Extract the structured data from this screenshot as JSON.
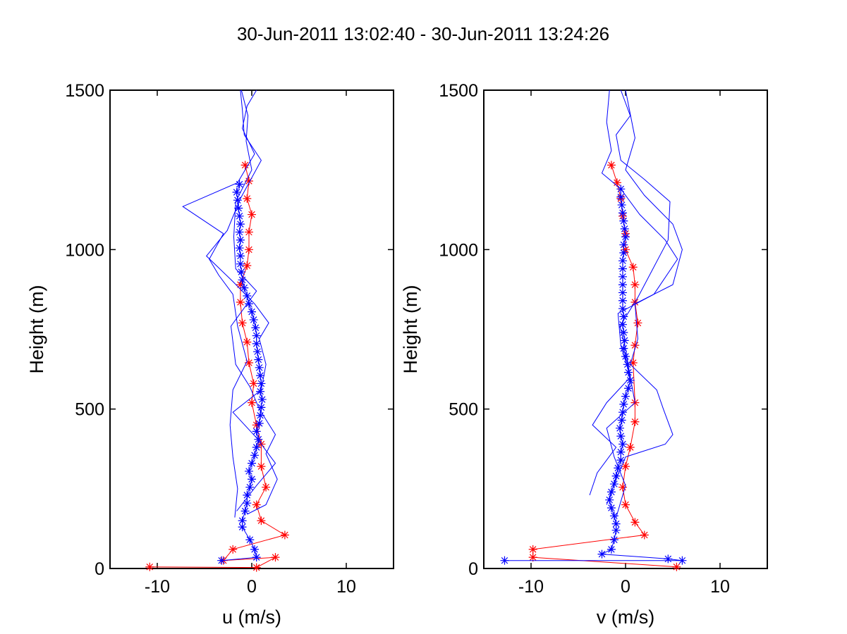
{
  "title": "30-Jun-2011 13:02:40 - 30-Jun-2011 13:24:26",
  "colors": {
    "red": "#ff0000",
    "blue": "#0000ff",
    "axes": "#000000",
    "background": "#ffffff"
  },
  "chart_data": [
    {
      "type": "line",
      "panel": "u",
      "xlabel": "u (m/s)",
      "ylabel": "Height (m)",
      "xlim": [
        -15,
        15
      ],
      "ylim": [
        0,
        1500
      ],
      "xticks": [
        -10,
        0,
        10
      ],
      "yticks": [
        0,
        500,
        1000,
        1500
      ],
      "grid": false,
      "series": [
        {
          "color": "red",
          "marker": "*",
          "points": [
            [
              -10.8,
              5
            ],
            [
              0.5,
              3
            ],
            [
              2.5,
              35
            ],
            [
              -3,
              25
            ],
            [
              -2,
              60
            ],
            [
              3.5,
              105
            ],
            [
              1,
              150
            ],
            [
              0.5,
              200
            ],
            [
              1.5,
              255
            ],
            [
              1,
              320
            ],
            [
              1,
              390
            ],
            [
              0.5,
              450
            ],
            [
              0,
              520
            ],
            [
              0.2,
              580
            ],
            [
              -0.3,
              645
            ],
            [
              -0.5,
              710
            ],
            [
              -1,
              770
            ],
            [
              -1.2,
              835
            ],
            [
              -1.2,
              890
            ],
            [
              -0.5,
              950
            ],
            [
              -0.3,
              1000
            ],
            [
              -0.3,
              1055
            ],
            [
              0,
              1110
            ],
            [
              -0.5,
              1160
            ],
            [
              -0.3,
              1215
            ],
            [
              -0.7,
              1265
            ]
          ]
        },
        {
          "color": "blue",
          "marker": "*",
          "points": [
            [
              -3.2,
              25
            ],
            [
              0.5,
              35
            ],
            [
              0.3,
              60
            ],
            [
              -0.2,
              90
            ],
            [
              -1,
              130
            ],
            [
              -1,
              150
            ],
            [
              -0.7,
              180
            ],
            [
              -0.5,
              205
            ],
            [
              -0.5,
              230
            ],
            [
              -0.2,
              255
            ],
            [
              0,
              280
            ],
            [
              -0.3,
              305
            ],
            [
              0,
              330
            ],
            [
              0.3,
              355
            ],
            [
              0.5,
              380
            ],
            [
              0.7,
              405
            ],
            [
              0.5,
              430
            ],
            [
              0.8,
              455
            ],
            [
              0.9,
              480
            ],
            [
              1,
              505
            ],
            [
              1.1,
              530
            ],
            [
              0.9,
              555
            ],
            [
              1,
              580
            ],
            [
              0.9,
              605
            ],
            [
              0.8,
              630
            ],
            [
              0.7,
              655
            ],
            [
              0.6,
              680
            ],
            [
              0.5,
              705
            ],
            [
              0.5,
              730
            ],
            [
              0.4,
              755
            ],
            [
              0.2,
              780
            ],
            [
              0,
              805
            ],
            [
              -0.3,
              830
            ],
            [
              -0.5,
              855
            ],
            [
              -0.8,
              880
            ],
            [
              -1,
              905
            ],
            [
              -1.1,
              930
            ],
            [
              -1.2,
              955
            ],
            [
              -1.2,
              980
            ],
            [
              -1.3,
              1005
            ],
            [
              -1.2,
              1030
            ],
            [
              -1.3,
              1055
            ],
            [
              -1.2,
              1080
            ],
            [
              -1.3,
              1105
            ],
            [
              -1.4,
              1130
            ],
            [
              -1.5,
              1155
            ],
            [
              -1.6,
              1180
            ],
            [
              -1.3,
              1205
            ]
          ]
        },
        {
          "color": "blue",
          "marker": "none",
          "points": [
            [
              -1.8,
              160
            ],
            [
              -1.5,
              250
            ],
            [
              -2,
              350
            ],
            [
              -2.3,
              450
            ],
            [
              -2,
              560
            ],
            [
              -0.5,
              650
            ],
            [
              -1.5,
              760
            ],
            [
              -2,
              860
            ],
            [
              -3.5,
              920
            ],
            [
              -4.5,
              970
            ],
            [
              -3,
              1050
            ],
            [
              -7.3,
              1135
            ],
            [
              -1.5,
              1210
            ],
            [
              0.3,
              1300
            ],
            [
              -1,
              1380
            ],
            [
              -0.5,
              1450
            ],
            [
              0.5,
              1500
            ]
          ]
        },
        {
          "color": "blue",
          "marker": "none",
          "points": [
            [
              -1.6,
              180
            ],
            [
              0.5,
              260
            ],
            [
              2.5,
              330
            ],
            [
              0.5,
              410
            ],
            [
              -2,
              490
            ],
            [
              1,
              560
            ],
            [
              1.5,
              640
            ],
            [
              0.8,
              720
            ],
            [
              1.8,
              770
            ],
            [
              0.3,
              830
            ],
            [
              -2,
              900
            ],
            [
              -4.8,
              980
            ],
            [
              -2.6,
              1060
            ],
            [
              -1.2,
              1160
            ],
            [
              1,
              1280
            ],
            [
              -0.8,
              1360
            ],
            [
              -1,
              1440
            ],
            [
              -1.2,
              1500
            ]
          ]
        },
        {
          "color": "blue",
          "marker": "none",
          "points": [
            [
              -0.5,
              170
            ],
            [
              1.5,
              200
            ],
            [
              2.7,
              280
            ],
            [
              1.5,
              360
            ],
            [
              2.5,
              420
            ],
            [
              0.8,
              500
            ],
            [
              -0.2,
              570
            ],
            [
              -1.7,
              640
            ],
            [
              -2.2,
              760
            ],
            [
              0.5,
              870
            ],
            [
              -1.7,
              940
            ],
            [
              -1.9,
              1040
            ],
            [
              -1.7,
              1150
            ],
            [
              0,
              1250
            ],
            [
              -0.6,
              1340
            ],
            [
              -0.4,
              1420
            ],
            [
              -1.1,
              1500
            ]
          ]
        }
      ]
    },
    {
      "type": "line",
      "panel": "v",
      "xlabel": "v (m/s)",
      "ylabel": "Height (m)",
      "xlim": [
        -15,
        15
      ],
      "ylim": [
        0,
        1500
      ],
      "xticks": [
        -10,
        0,
        10
      ],
      "yticks": [
        0,
        500,
        1000,
        1500
      ],
      "grid": false,
      "series": [
        {
          "color": "red",
          "marker": "*",
          "points": [
            [
              5.4,
              5
            ],
            [
              -9.8,
              35
            ],
            [
              -9.8,
              60
            ],
            [
              2,
              105
            ],
            [
              1,
              145
            ],
            [
              0,
              200
            ],
            [
              -0.3,
              255
            ],
            [
              0,
              320
            ],
            [
              0.5,
              380
            ],
            [
              1,
              460
            ],
            [
              1,
              520
            ],
            [
              0.8,
              645
            ],
            [
              1,
              700
            ],
            [
              1.3,
              770
            ],
            [
              1,
              835
            ],
            [
              1,
              890
            ],
            [
              0.8,
              945
            ],
            [
              0,
              1000
            ],
            [
              0,
              1050
            ],
            [
              -0.3,
              1105
            ],
            [
              -0.5,
              1160
            ],
            [
              -0.9,
              1210
            ],
            [
              -1.5,
              1265
            ]
          ]
        },
        {
          "color": "blue",
          "marker": "*",
          "points": [
            [
              -12.8,
              25
            ],
            [
              6,
              25
            ],
            [
              4.5,
              30
            ],
            [
              -2.5,
              45
            ],
            [
              -1.5,
              60
            ],
            [
              -1.2,
              90
            ],
            [
              -1,
              120
            ],
            [
              -1,
              140
            ],
            [
              -1.2,
              165
            ],
            [
              -1.5,
              190
            ],
            [
              -1.7,
              215
            ],
            [
              -1.5,
              240
            ],
            [
              -1.2,
              265
            ],
            [
              -1,
              290
            ],
            [
              -0.8,
              315
            ],
            [
              -0.5,
              340
            ],
            [
              -0.5,
              365
            ],
            [
              -0.3,
              390
            ],
            [
              -0.5,
              415
            ],
            [
              -0.6,
              440
            ],
            [
              -0.4,
              465
            ],
            [
              -0.3,
              490
            ],
            [
              -0.2,
              515
            ],
            [
              0,
              540
            ],
            [
              0.3,
              565
            ],
            [
              0.5,
              590
            ],
            [
              0.3,
              615
            ],
            [
              0.2,
              640
            ],
            [
              0,
              665
            ],
            [
              -0.2,
              690
            ],
            [
              -0.1,
              715
            ],
            [
              -0.2,
              740
            ],
            [
              -0.3,
              765
            ],
            [
              -0.2,
              790
            ],
            [
              -0.3,
              815
            ],
            [
              -0.3,
              840
            ],
            [
              -0.3,
              865
            ],
            [
              -0.3,
              890
            ],
            [
              -0.3,
              915
            ],
            [
              -0.3,
              940
            ],
            [
              -0.3,
              965
            ],
            [
              -0.2,
              990
            ],
            [
              -0.2,
              1015
            ],
            [
              0,
              1040
            ],
            [
              -0.1,
              1065
            ],
            [
              -0.2,
              1090
            ],
            [
              -0.3,
              1115
            ],
            [
              -0.4,
              1140
            ],
            [
              -0.5,
              1165
            ],
            [
              -0.5,
              1190
            ]
          ]
        },
        {
          "color": "blue",
          "marker": "none",
          "points": [
            [
              -3.8,
              230
            ],
            [
              -3,
              300
            ],
            [
              -1,
              380
            ],
            [
              -3.5,
              450
            ],
            [
              -2,
              520
            ],
            [
              0.5,
              600
            ],
            [
              -0.5,
              700
            ],
            [
              -0.8,
              800
            ],
            [
              3,
              860
            ],
            [
              5.5,
              970
            ],
            [
              4.2,
              1030
            ],
            [
              1.5,
              1110
            ],
            [
              -0.5,
              1190
            ],
            [
              -2.5,
              1240
            ],
            [
              -1.5,
              1310
            ],
            [
              -2,
              1400
            ],
            [
              -1.7,
              1500
            ]
          ]
        },
        {
          "color": "blue",
          "marker": "none",
          "points": [
            [
              -2,
              200
            ],
            [
              -1,
              280
            ],
            [
              0,
              350
            ],
            [
              4.2,
              390
            ],
            [
              5,
              420
            ],
            [
              4,
              500
            ],
            [
              3.3,
              560
            ],
            [
              0.5,
              640
            ],
            [
              1.3,
              720
            ],
            [
              1,
              830
            ],
            [
              5,
              890
            ],
            [
              6,
              1000
            ],
            [
              5,
              1080
            ],
            [
              2,
              1170
            ],
            [
              0,
              1250
            ],
            [
              1,
              1350
            ],
            [
              0,
              1500
            ]
          ]
        },
        {
          "color": "blue",
          "marker": "none",
          "points": [
            [
              -1,
              160
            ],
            [
              0,
              260
            ],
            [
              -1.2,
              350
            ],
            [
              -2,
              440
            ],
            [
              1,
              520
            ],
            [
              0.5,
              600
            ],
            [
              0,
              690
            ],
            [
              -0.6,
              760
            ],
            [
              1.3,
              850
            ],
            [
              4.5,
              1030
            ],
            [
              4.7,
              1150
            ],
            [
              2,
              1220
            ],
            [
              -0.5,
              1280
            ],
            [
              -1,
              1360
            ],
            [
              0.5,
              1420
            ],
            [
              -0.5,
              1500
            ]
          ]
        }
      ]
    }
  ]
}
